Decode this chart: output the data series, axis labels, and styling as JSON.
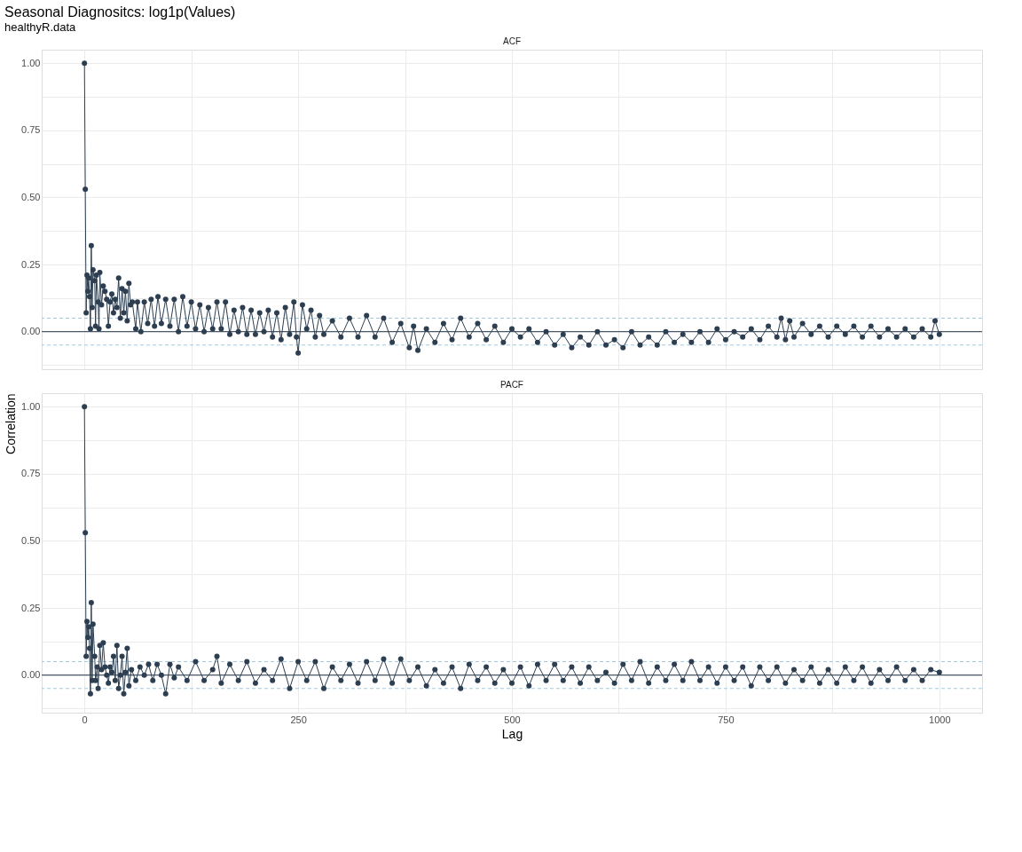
{
  "chart_data": [
    {
      "type": "line",
      "title": "ACF",
      "annotations": [
        "Seasonal Diagnositcs: log1p(Values)",
        "healthyR.data"
      ],
      "marker": "circle",
      "line_style": "solid",
      "grid": true,
      "tick_labels": "y",
      "xlim": [
        -50,
        1050
      ],
      "xticks": [
        0,
        {
          "value": 125,
          "label": null
        },
        250,
        {
          "value": 375,
          "label": null
        },
        500,
        {
          "value": 625,
          "label": null
        },
        750,
        {
          "value": 875,
          "label": null
        },
        1000
      ],
      "ylim": [
        -0.14,
        1.05
      ],
      "yticks": [
        {
          "value": -0.125,
          "label": null
        },
        {
          "value": 0,
          "label": "0.00"
        },
        {
          "value": 0.125,
          "label": null
        },
        {
          "value": 0.25,
          "label": "0.25"
        },
        {
          "value": 0.375,
          "label": null
        },
        {
          "value": 0.5,
          "label": "0.50"
        },
        {
          "value": 0.625,
          "label": null
        },
        {
          "value": 0.75,
          "label": "0.75"
        },
        {
          "value": 0.875,
          "label": null
        },
        {
          "value": 1,
          "label": "1.00"
        }
      ],
      "ref_lines": [
        {
          "axis": "y",
          "value": 0,
          "color": "#2c3e50",
          "line_style": "solid"
        },
        {
          "axis": "y",
          "value": 0.05,
          "color": "#9ecae1",
          "line_style": "dashed"
        },
        {
          "axis": "y",
          "value": -0.05,
          "color": "#9ecae1",
          "line_style": "dashed"
        }
      ],
      "series": [
        {
          "color": "#2c3e50",
          "x": [
            0,
            1,
            2,
            3,
            4,
            5,
            6,
            7,
            8,
            9,
            10,
            12,
            13,
            14,
            16,
            17,
            18,
            20,
            22,
            24,
            26,
            28,
            30,
            32,
            34,
            36,
            38,
            40,
            42,
            44,
            46,
            48,
            50,
            52,
            54,
            56,
            60,
            62,
            66,
            70,
            74,
            78,
            82,
            86,
            90,
            95,
            100,
            105,
            110,
            115,
            120,
            125,
            130,
            135,
            140,
            145,
            150,
            155,
            160,
            165,
            170,
            175,
            180,
            185,
            190,
            195,
            200,
            205,
            210,
            215,
            220,
            225,
            230,
            235,
            240,
            245,
            248,
            250,
            255,
            260,
            265,
            270,
            275,
            280,
            290,
            300,
            310,
            320,
            330,
            340,
            350,
            360,
            370,
            380,
            385,
            390,
            400,
            410,
            420,
            430,
            440,
            450,
            460,
            470,
            480,
            490,
            500,
            510,
            520,
            530,
            540,
            550,
            560,
            570,
            580,
            590,
            600,
            610,
            620,
            630,
            640,
            650,
            660,
            670,
            680,
            690,
            700,
            710,
            720,
            730,
            740,
            750,
            760,
            770,
            780,
            790,
            800,
            810,
            815,
            820,
            825,
            830,
            840,
            850,
            860,
            870,
            880,
            890,
            900,
            910,
            920,
            930,
            940,
            950,
            960,
            970,
            980,
            990,
            995,
            1000
          ],
          "values": [
            1.0,
            0.53,
            0.07,
            0.21,
            0.15,
            0.2,
            0.13,
            0.01,
            0.32,
            0.09,
            0.23,
            0.19,
            0.02,
            0.21,
            0.11,
            0.01,
            0.22,
            0.1,
            0.17,
            0.15,
            0.12,
            0.02,
            0.11,
            0.14,
            0.07,
            0.12,
            0.09,
            0.2,
            0.05,
            0.16,
            0.07,
            0.15,
            0.04,
            0.18,
            0.1,
            0.11,
            0.01,
            0.11,
            0.0,
            0.11,
            0.03,
            0.12,
            0.02,
            0.13,
            0.03,
            0.12,
            0.02,
            0.12,
            0.0,
            0.13,
            0.02,
            0.11,
            0.01,
            0.1,
            0.0,
            0.09,
            0.01,
            0.11,
            0.01,
            0.11,
            -0.01,
            0.08,
            0.0,
            0.09,
            -0.01,
            0.08,
            -0.01,
            0.07,
            0.0,
            0.08,
            -0.02,
            0.07,
            -0.03,
            0.09,
            -0.01,
            0.11,
            -0.02,
            -0.08,
            0.1,
            0.01,
            0.08,
            -0.02,
            0.06,
            -0.01,
            0.04,
            -0.02,
            0.05,
            -0.02,
            0.06,
            -0.02,
            0.05,
            -0.04,
            0.03,
            -0.06,
            0.02,
            -0.07,
            0.01,
            -0.04,
            0.03,
            -0.03,
            0.05,
            -0.02,
            0.03,
            -0.03,
            0.02,
            -0.04,
            0.01,
            -0.02,
            0.01,
            -0.04,
            0.0,
            -0.05,
            -0.01,
            -0.06,
            -0.02,
            -0.05,
            0.0,
            -0.05,
            -0.03,
            -0.06,
            0.0,
            -0.05,
            -0.02,
            -0.05,
            0.0,
            -0.04,
            -0.01,
            -0.04,
            0.0,
            -0.04,
            0.01,
            -0.03,
            0.0,
            -0.02,
            0.01,
            -0.03,
            0.02,
            -0.02,
            0.05,
            -0.03,
            0.04,
            -0.02,
            0.03,
            -0.01,
            0.02,
            -0.02,
            0.02,
            -0.01,
            0.02,
            -0.02,
            0.02,
            -0.02,
            0.01,
            -0.02,
            0.01,
            -0.02,
            0.01,
            -0.02,
            0.04,
            -0.01
          ]
        }
      ]
    },
    {
      "type": "line",
      "title": "PACF",
      "xlabel": "Lag",
      "ylabel": "Correlation",
      "marker": "circle",
      "line_style": "solid",
      "grid": true,
      "xlim": [
        -50,
        1050
      ],
      "xticks": [
        0,
        {
          "value": 125,
          "label": null
        },
        250,
        {
          "value": 375,
          "label": null
        },
        500,
        {
          "value": 625,
          "label": null
        },
        750,
        {
          "value": 875,
          "label": null
        },
        1000
      ],
      "ylim": [
        -0.14,
        1.05
      ],
      "yticks": [
        {
          "value": -0.125,
          "label": null
        },
        {
          "value": 0,
          "label": "0.00"
        },
        {
          "value": 0.125,
          "label": null
        },
        {
          "value": 0.25,
          "label": "0.25"
        },
        {
          "value": 0.375,
          "label": null
        },
        {
          "value": 0.5,
          "label": "0.50"
        },
        {
          "value": 0.625,
          "label": null
        },
        {
          "value": 0.75,
          "label": "0.75"
        },
        {
          "value": 0.875,
          "label": null
        },
        {
          "value": 1,
          "label": "1.00"
        }
      ],
      "ref_lines": [
        {
          "axis": "y",
          "value": 0,
          "color": "#2c3e50",
          "line_style": "solid"
        },
        {
          "axis": "y",
          "value": 0.05,
          "color": "#9ecae1",
          "line_style": "dashed"
        },
        {
          "axis": "y",
          "value": -0.05,
          "color": "#9ecae1",
          "line_style": "dashed"
        }
      ],
      "series": [
        {
          "color": "#2c3e50",
          "x": [
            0,
            1,
            2,
            3,
            4,
            5,
            6,
            7,
            8,
            9,
            10,
            12,
            13,
            15,
            16,
            18,
            20,
            22,
            24,
            26,
            28,
            30,
            32,
            34,
            36,
            38,
            40,
            42,
            44,
            46,
            48,
            50,
            52,
            55,
            60,
            65,
            70,
            75,
            80,
            85,
            90,
            95,
            100,
            105,
            110,
            120,
            130,
            140,
            150,
            155,
            160,
            170,
            180,
            190,
            200,
            210,
            220,
            230,
            240,
            250,
            260,
            270,
            280,
            290,
            300,
            310,
            320,
            330,
            340,
            350,
            360,
            370,
            380,
            390,
            400,
            410,
            420,
            430,
            440,
            450,
            460,
            470,
            480,
            490,
            500,
            510,
            520,
            530,
            540,
            550,
            560,
            570,
            580,
            590,
            600,
            610,
            620,
            630,
            640,
            650,
            660,
            670,
            680,
            690,
            700,
            710,
            720,
            730,
            740,
            750,
            760,
            770,
            780,
            790,
            800,
            810,
            820,
            830,
            840,
            850,
            860,
            870,
            880,
            890,
            900,
            910,
            920,
            930,
            940,
            950,
            960,
            970,
            980,
            990,
            1000
          ],
          "values": [
            1.0,
            0.53,
            0.07,
            0.2,
            0.14,
            0.18,
            0.1,
            -0.07,
            0.27,
            -0.02,
            0.19,
            0.07,
            -0.02,
            0.03,
            -0.05,
            0.11,
            0.02,
            0.12,
            0.03,
            0.0,
            -0.03,
            0.03,
            0.01,
            0.07,
            -0.02,
            0.11,
            -0.05,
            0.0,
            0.07,
            -0.07,
            0.01,
            0.1,
            -0.04,
            0.02,
            -0.02,
            0.03,
            0.0,
            0.04,
            -0.02,
            0.04,
            0.0,
            -0.07,
            0.04,
            -0.01,
            0.03,
            -0.02,
            0.05,
            -0.02,
            0.02,
            0.07,
            -0.03,
            0.04,
            -0.02,
            0.05,
            -0.03,
            0.02,
            -0.02,
            0.06,
            -0.05,
            0.05,
            -0.02,
            0.05,
            -0.05,
            0.03,
            -0.02,
            0.04,
            -0.03,
            0.05,
            -0.02,
            0.06,
            -0.03,
            0.06,
            -0.02,
            0.03,
            -0.04,
            0.02,
            -0.03,
            0.03,
            -0.05,
            0.04,
            -0.02,
            0.03,
            -0.03,
            0.02,
            -0.03,
            0.03,
            -0.04,
            0.04,
            -0.02,
            0.04,
            -0.02,
            0.03,
            -0.03,
            0.03,
            -0.02,
            0.01,
            -0.03,
            0.04,
            -0.02,
            0.05,
            -0.03,
            0.03,
            -0.02,
            0.04,
            -0.02,
            0.05,
            -0.02,
            0.03,
            -0.03,
            0.03,
            -0.02,
            0.03,
            -0.04,
            0.03,
            -0.02,
            0.03,
            -0.03,
            0.02,
            -0.02,
            0.03,
            -0.03,
            0.02,
            -0.03,
            0.03,
            -0.02,
            0.03,
            -0.03,
            0.02,
            -0.02,
            0.03,
            -0.02,
            0.02,
            -0.02,
            0.02,
            0.01
          ]
        }
      ]
    }
  ]
}
